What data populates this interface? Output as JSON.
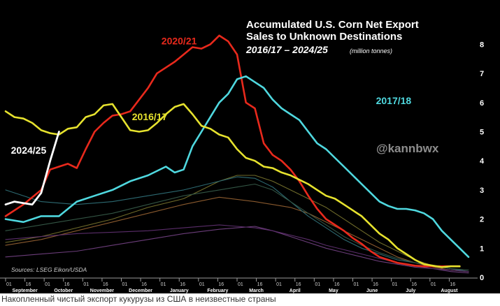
{
  "caption": "Накопленный чистый экспорт кукурузы из США в неизвестные страны",
  "chart_data": {
    "type": "line",
    "title": "Accumulated U.S. Corn Net Export Sales to Unknown Destinations",
    "title_lines": [
      "Accumulated U.S. Corn Net Export",
      "Sales to Unknown Destinations"
    ],
    "subtitle": "2016/17 – 2024/25",
    "unit_label": "(million tonnes)",
    "source": "Sources: LSEG Eikon/USDA",
    "watermark": "@kannbwx",
    "ylim": [
      0,
      8.8
    ],
    "y_ticks": [
      "0",
      "1",
      "2",
      "3",
      "4",
      "5",
      "6",
      "7",
      "8"
    ],
    "y_axis_position": "right",
    "grid": false,
    "background": "#000000",
    "x_unit": "weeks since September 1",
    "x_range": [
      0,
      52
    ],
    "x_tick_labels": [
      "01",
      "16",
      "01",
      "16",
      "01",
      "16",
      "01",
      "16",
      "01",
      "16",
      "01",
      "16",
      "01",
      "16",
      "01",
      "16",
      "01",
      "16",
      "01",
      "16",
      "01",
      "16",
      "01",
      "16"
    ],
    "months": [
      "September",
      "October",
      "November",
      "December",
      "January",
      "February",
      "March",
      "April",
      "May",
      "June",
      "July",
      "August"
    ],
    "series": [
      {
        "name": "2020/21",
        "color": "#e8291c",
        "width": 2.6,
        "labeled": true,
        "x": [
          0,
          2,
          4,
          5,
          6,
          7,
          8,
          9,
          10,
          11,
          12,
          13,
          14,
          15,
          16,
          17,
          18,
          19,
          20,
          21,
          22,
          23,
          24,
          25,
          26,
          27,
          28,
          29,
          30,
          31,
          32,
          33,
          34,
          35,
          36,
          37,
          38,
          39,
          40,
          41,
          42,
          43,
          44,
          45,
          46,
          47,
          48,
          49,
          50,
          51
        ],
        "values": [
          2.1,
          2.5,
          3.0,
          3.7,
          3.8,
          3.9,
          3.75,
          4.4,
          5.0,
          5.3,
          5.55,
          5.6,
          5.7,
          6.1,
          6.5,
          7.0,
          7.2,
          7.4,
          7.65,
          7.9,
          7.85,
          8.0,
          8.3,
          8.1,
          7.65,
          6.0,
          5.8,
          4.6,
          4.2,
          4.0,
          3.7,
          3.3,
          2.8,
          2.35,
          2.0,
          1.8,
          1.6,
          1.35,
          1.15,
          0.9,
          0.7,
          0.6,
          0.5,
          0.45,
          0.4,
          0.38,
          0.38,
          0.38,
          0.38,
          0.38
        ]
      },
      {
        "name": "2017/18",
        "color": "#4fd8df",
        "width": 2.6,
        "labeled": true,
        "x": [
          0,
          2,
          4,
          6,
          8,
          10,
          12,
          14,
          16,
          18,
          19,
          20,
          21,
          22,
          23,
          24,
          25,
          26,
          27,
          28,
          29,
          30,
          31,
          32,
          33,
          34,
          35,
          36,
          37,
          38,
          39,
          40,
          41,
          42,
          43,
          44,
          45,
          46,
          47,
          48,
          49,
          50,
          51,
          52
        ],
        "values": [
          2.0,
          1.9,
          2.1,
          2.1,
          2.6,
          2.8,
          3.0,
          3.3,
          3.5,
          3.8,
          3.6,
          3.7,
          4.5,
          5.0,
          5.5,
          6.0,
          6.3,
          6.8,
          6.9,
          6.7,
          6.5,
          6.1,
          5.8,
          5.6,
          5.4,
          5.0,
          4.6,
          4.4,
          4.1,
          3.8,
          3.5,
          3.2,
          2.9,
          2.6,
          2.45,
          2.35,
          2.35,
          2.3,
          2.2,
          2.0,
          1.6,
          1.3,
          1.0,
          0.7
        ]
      },
      {
        "name": "2016/17",
        "color": "#e6e22e",
        "width": 2.6,
        "labeled": true,
        "x": [
          0,
          1,
          2,
          3,
          4,
          5,
          6,
          7,
          8,
          9,
          10,
          11,
          12,
          13,
          14,
          15,
          16,
          17,
          18,
          19,
          20,
          21,
          22,
          23,
          24,
          25,
          26,
          27,
          28,
          29,
          30,
          31,
          32,
          33,
          34,
          35,
          36,
          37,
          38,
          39,
          40,
          41,
          42,
          43,
          44,
          45,
          46,
          47,
          48,
          49,
          50,
          51
        ],
        "values": [
          5.7,
          5.5,
          5.45,
          5.3,
          5.05,
          4.95,
          4.9,
          5.1,
          5.15,
          5.5,
          5.6,
          5.9,
          5.95,
          5.5,
          5.05,
          5.0,
          5.05,
          5.3,
          5.6,
          5.85,
          5.95,
          5.6,
          5.2,
          5.1,
          4.9,
          4.8,
          4.4,
          4.1,
          4.0,
          3.8,
          3.75,
          3.6,
          3.5,
          3.35,
          3.2,
          3.0,
          2.8,
          2.7,
          2.5,
          2.3,
          2.1,
          1.8,
          1.5,
          1.3,
          1.0,
          0.8,
          0.6,
          0.45,
          0.4,
          0.35,
          0.38,
          0.38
        ]
      },
      {
        "name": "2024/25",
        "color": "#ffffff",
        "width": 2.8,
        "labeled": true,
        "x": [
          0,
          1,
          2,
          3,
          4,
          5,
          6
        ],
        "values": [
          2.5,
          2.6,
          2.55,
          2.5,
          2.9,
          4.0,
          5.0
        ]
      },
      {
        "name": "",
        "color": "#6e6a2a",
        "width": 1.1,
        "labeled": false,
        "x": [
          0,
          4,
          8,
          12,
          16,
          20,
          22,
          24,
          26,
          28,
          30,
          32,
          34,
          36,
          38,
          40,
          42,
          44,
          46,
          48,
          50,
          52
        ],
        "values": [
          1.2,
          1.4,
          1.7,
          2.0,
          2.4,
          2.7,
          3.0,
          3.3,
          3.5,
          3.5,
          3.3,
          3.0,
          2.7,
          2.4,
          2.0,
          1.6,
          1.2,
          0.9,
          0.6,
          0.4,
          0.3,
          0.2
        ]
      },
      {
        "name": "",
        "color": "#8a5a2e",
        "width": 1.1,
        "labeled": false,
        "x": [
          0,
          4,
          8,
          12,
          16,
          20,
          24,
          28,
          30,
          32,
          34,
          36,
          38,
          40,
          42,
          44,
          46,
          48,
          50,
          52
        ],
        "values": [
          1.1,
          1.3,
          1.6,
          1.9,
          2.2,
          2.5,
          2.75,
          2.6,
          2.5,
          2.4,
          2.2,
          1.9,
          1.6,
          1.3,
          1.0,
          0.7,
          0.5,
          0.35,
          0.25,
          0.2
        ]
      },
      {
        "name": "",
        "color": "#2d6a72",
        "width": 1.1,
        "labeled": false,
        "x": [
          0,
          4,
          8,
          12,
          16,
          20,
          24,
          26,
          28,
          30,
          32,
          34,
          36,
          38,
          40,
          42,
          44,
          46,
          48,
          50,
          52
        ],
        "values": [
          3.0,
          2.6,
          2.5,
          2.6,
          2.8,
          3.0,
          3.3,
          3.45,
          3.4,
          3.1,
          2.6,
          2.1,
          1.7,
          1.3,
          1.0,
          0.8,
          0.6,
          0.5,
          0.4,
          0.3,
          0.2
        ]
      },
      {
        "name": "",
        "color": "#6b3d7a",
        "width": 1.1,
        "labeled": false,
        "x": [
          0,
          4,
          8,
          12,
          16,
          20,
          24,
          26,
          28,
          30,
          32,
          34,
          36,
          38,
          40,
          42,
          44,
          46,
          48,
          50,
          52
        ],
        "values": [
          0.7,
          0.8,
          0.9,
          1.1,
          1.3,
          1.5,
          1.65,
          1.7,
          1.75,
          1.6,
          1.4,
          1.2,
          1.0,
          0.85,
          0.7,
          0.55,
          0.45,
          0.35,
          0.3,
          0.2,
          0.15
        ]
      },
      {
        "name": "",
        "color": "#5a2d6a",
        "width": 1.1,
        "labeled": false,
        "x": [
          0,
          4,
          8,
          12,
          16,
          20,
          24,
          26,
          28,
          30,
          32,
          34,
          36,
          38,
          40,
          42,
          44,
          46,
          48,
          50,
          52
        ],
        "values": [
          1.3,
          1.4,
          1.5,
          1.55,
          1.6,
          1.7,
          1.8,
          1.75,
          1.7,
          1.6,
          1.45,
          1.3,
          1.1,
          0.95,
          0.8,
          0.65,
          0.5,
          0.4,
          0.3,
          0.25,
          0.2
        ]
      },
      {
        "name": "",
        "color": "#335544",
        "width": 1.1,
        "labeled": false,
        "x": [
          0,
          4,
          8,
          12,
          16,
          20,
          24,
          26,
          28,
          30,
          32,
          34,
          36,
          38,
          40,
          42,
          44,
          46,
          48,
          50,
          52
        ],
        "values": [
          1.6,
          1.8,
          2.0,
          2.2,
          2.5,
          2.8,
          3.0,
          3.1,
          3.2,
          3.0,
          2.6,
          2.2,
          1.8,
          1.4,
          1.1,
          0.85,
          0.65,
          0.5,
          0.4,
          0.3,
          0.25
        ]
      }
    ]
  }
}
